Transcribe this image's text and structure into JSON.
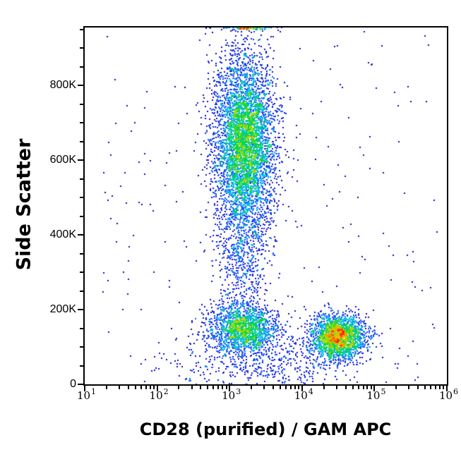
{
  "chart_data": {
    "type": "scatter",
    "subtype": "flow_cytometry_pseudocolor_density_dot_plot",
    "title": "",
    "xlabel": "CD28 (purified) / GAM APC",
    "ylabel": "Side Scatter",
    "x_scale": "log10",
    "x_range": [
      10,
      1000000
    ],
    "x_tick_base": "10",
    "x_major_tick_exponents": [
      1,
      2,
      3,
      4,
      5,
      6
    ],
    "y_scale": "linear",
    "y_range": [
      0,
      955000
    ],
    "y_major_ticks": [
      {
        "value": 0,
        "label": "0"
      },
      {
        "value": 200000,
        "label": "200K"
      },
      {
        "value": 400000,
        "label": "400K"
      },
      {
        "value": 600000,
        "label": "600K"
      },
      {
        "value": 800000,
        "label": "800K"
      }
    ],
    "y_minor_tick_step": 50000,
    "grid": false,
    "legend": false,
    "populations": [
      {
        "name": "high_ssc_cluster",
        "n": 5000,
        "x_log_mean": 3.21,
        "x_log_sd": 0.21,
        "y_mean": 640000,
        "y_sd": 122000
      },
      {
        "name": "mid_ssc_bridge",
        "n": 480,
        "x_log_mean": 3.17,
        "x_log_sd": 0.17,
        "y_mean": 320000,
        "y_sd": 70000
      },
      {
        "name": "cd28_negative_lymphocytes",
        "n": 1650,
        "x_log_mean": 3.19,
        "x_log_sd": 0.25,
        "y_mean": 147000,
        "y_sd": 33000
      },
      {
        "name": "cd28_positive_lymphocytes",
        "n": 2150,
        "x_log_mean": 4.5,
        "x_log_sd": 0.19,
        "y_mean": 126000,
        "y_sd": 30000
      },
      {
        "name": "low_ssc_debris",
        "n": 430,
        "x_log_mean": 3.5,
        "x_log_sd": 0.6,
        "y_mean": 55000,
        "y_sd": 38000
      },
      {
        "name": "sparse_background",
        "n": 240,
        "uniform": true,
        "x_log_range": [
          1.25,
          5.9
        ],
        "y_range": [
          5000,
          945000
        ]
      },
      {
        "name": "top_edge_pileup",
        "n": 110,
        "x_log_mean": 3.24,
        "x_log_sd": 0.15,
        "y_mean": 955000,
        "y_sd": 4000
      }
    ],
    "density_colormap": [
      {
        "t": 0.0,
        "color": "#0A0ACC"
      },
      {
        "t": 0.3,
        "color": "#1E64FF"
      },
      {
        "t": 0.45,
        "color": "#00C8F0"
      },
      {
        "t": 0.6,
        "color": "#00D23C"
      },
      {
        "t": 0.74,
        "color": "#A0E000"
      },
      {
        "t": 0.85,
        "color": "#FFB400"
      },
      {
        "t": 1.0,
        "color": "#F00000"
      }
    ],
    "dot_size_px": 2,
    "bin_size_px": 2,
    "seed": 20240711
  }
}
